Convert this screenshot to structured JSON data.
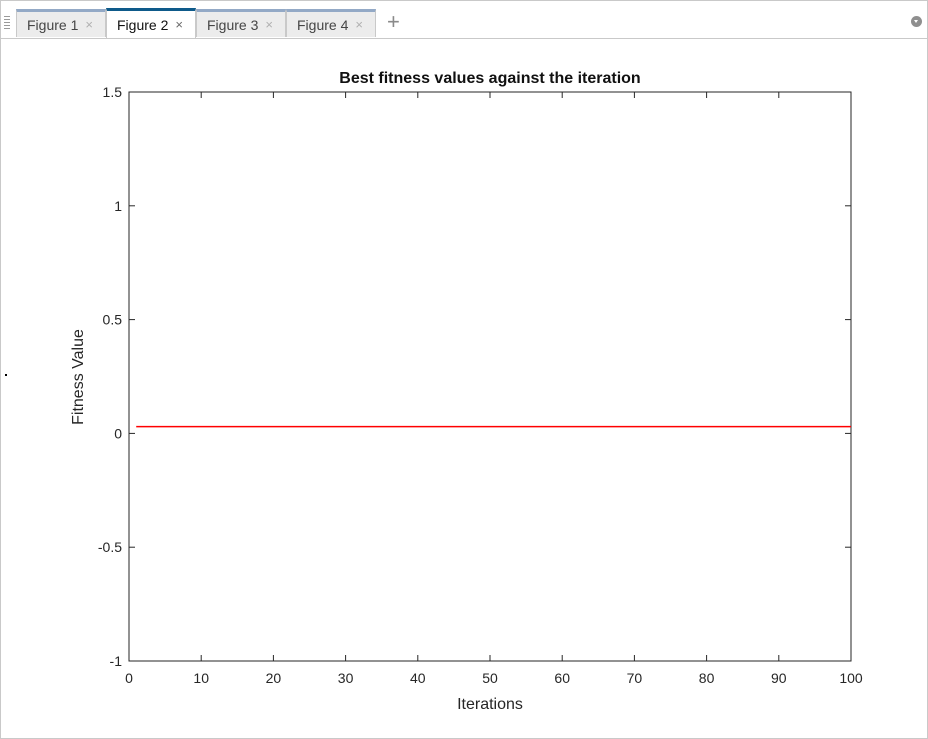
{
  "tabs": [
    {
      "label": "Figure 1",
      "active": false
    },
    {
      "label": "Figure 2",
      "active": true
    },
    {
      "label": "Figure 3",
      "active": false
    },
    {
      "label": "Figure 4",
      "active": false
    }
  ],
  "tab_close_glyph": "×",
  "add_tab_glyph": "+",
  "icons": {
    "grip": "grip-icon",
    "add": "plus-icon",
    "menu": "dropdown-menu-icon",
    "close": "close-icon"
  },
  "chart_data": {
    "type": "line",
    "title": "Best fitness values against the iteration",
    "xlabel": "Iterations",
    "ylabel": "Fitness Value",
    "xlim": [
      0,
      100
    ],
    "ylim": [
      -1,
      1.5
    ],
    "xticks": [
      0,
      10,
      20,
      30,
      40,
      50,
      60,
      70,
      80,
      90,
      100
    ],
    "yticks": [
      -1,
      -0.5,
      0,
      0.5,
      1,
      1.5
    ],
    "grid": false,
    "series": [
      {
        "color": "#ff0000",
        "x": [
          1,
          100
        ],
        "y": [
          0.03,
          0.03
        ]
      }
    ]
  }
}
